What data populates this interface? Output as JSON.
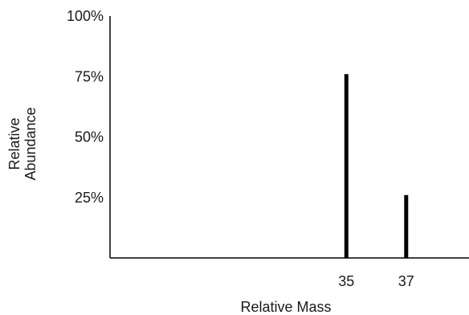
{
  "chart_data": {
    "type": "bar",
    "title": "",
    "xlabel": "Relative Mass",
    "ylabel_lines": [
      "Relative",
      "Abundance"
    ],
    "categories": [
      "35",
      "37"
    ],
    "x": [
      35,
      37
    ],
    "values": [
      76,
      26
    ],
    "y_ticks": [
      {
        "value": 25,
        "label": "25%"
      },
      {
        "value": 50,
        "label": "50%"
      },
      {
        "value": 75,
        "label": "75%"
      },
      {
        "value": 100,
        "label": "100%"
      }
    ],
    "ylim": [
      0,
      100
    ],
    "xlim": [
      27.1,
      39.1
    ],
    "grid": false,
    "bar_color": "#000000",
    "axis_color": "#000000"
  }
}
